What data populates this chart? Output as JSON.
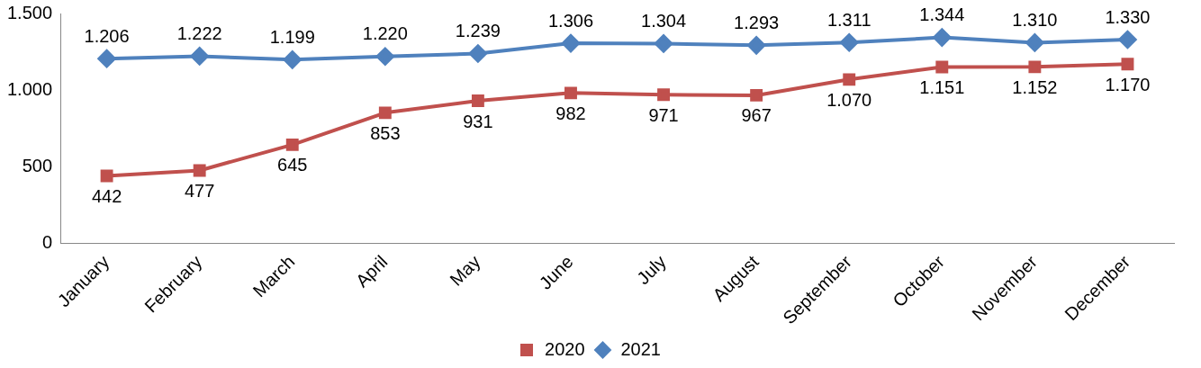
{
  "chart_data": {
    "type": "line",
    "categories": [
      "January",
      "February",
      "March",
      "April",
      "May",
      "June",
      "July",
      "August",
      "September",
      "October",
      "November",
      "December"
    ],
    "series": [
      {
        "name": "2020",
        "color": "#c0504d",
        "marker": "square",
        "values": [
          442,
          477,
          645,
          853,
          931,
          982,
          971,
          967,
          1070,
          1151,
          1152,
          1170
        ],
        "value_labels": [
          "442",
          "477",
          "645",
          "853",
          "931",
          "982",
          "971",
          "967",
          "1.070",
          "1.151",
          "1.152",
          "1.170"
        ]
      },
      {
        "name": "2021",
        "color": "#4f81bd",
        "marker": "diamond",
        "values": [
          1206,
          1222,
          1199,
          1220,
          1239,
          1306,
          1304,
          1293,
          1311,
          1344,
          1310,
          1330
        ],
        "value_labels": [
          "1.206",
          "1.222",
          "1.199",
          "1.220",
          "1.239",
          "1.306",
          "1.304",
          "1.293",
          "1.311",
          "1.344",
          "1.310",
          "1.330"
        ]
      }
    ],
    "ylim": [
      0,
      1500
    ],
    "yticks": [
      0,
      {
        "value": 500,
        "label": "500"
      },
      {
        "value": 1000,
        "label": "1.000"
      },
      {
        "value": 1500,
        "label": "1.500"
      }
    ],
    "grid": false,
    "legend": "bottom",
    "line_style": "solid"
  }
}
